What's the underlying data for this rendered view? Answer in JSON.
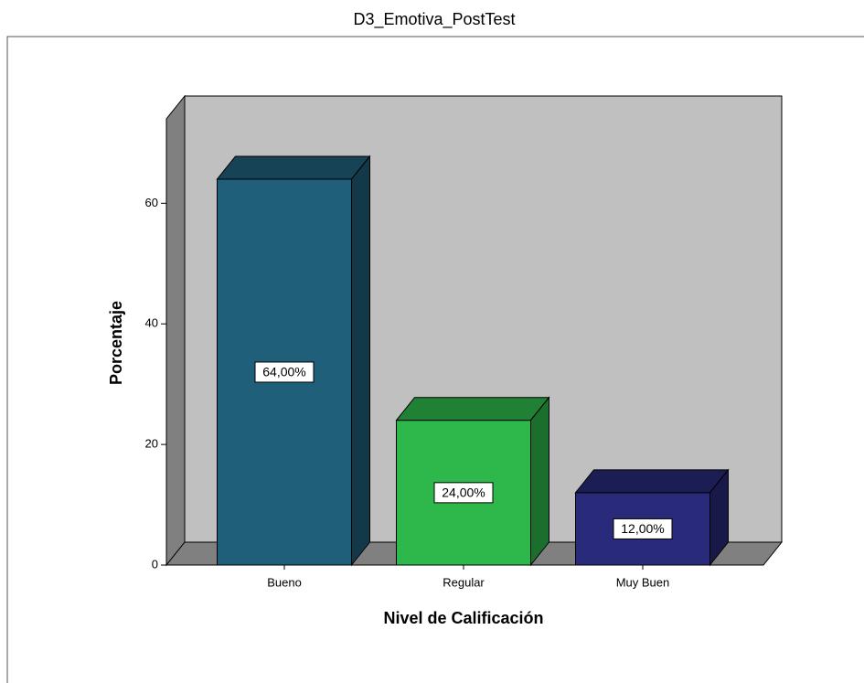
{
  "chart_data": {
    "type": "bar3d",
    "title": "D3_Emotiva_PostTest",
    "x_label": "Nivel de Calificación",
    "y_label": "Porcentaje",
    "categories": [
      "Bueno",
      "Regular",
      "Muy Buen"
    ],
    "values": [
      64,
      24,
      12
    ],
    "value_labels": [
      "64,00%",
      "24,00%",
      "12,00%"
    ],
    "colors": [
      "#1f5f7a",
      "#2eb84b",
      "#2a2a7a"
    ],
    "ylim": [
      0,
      74
    ],
    "yticks": [
      0,
      20,
      40,
      60
    ]
  }
}
